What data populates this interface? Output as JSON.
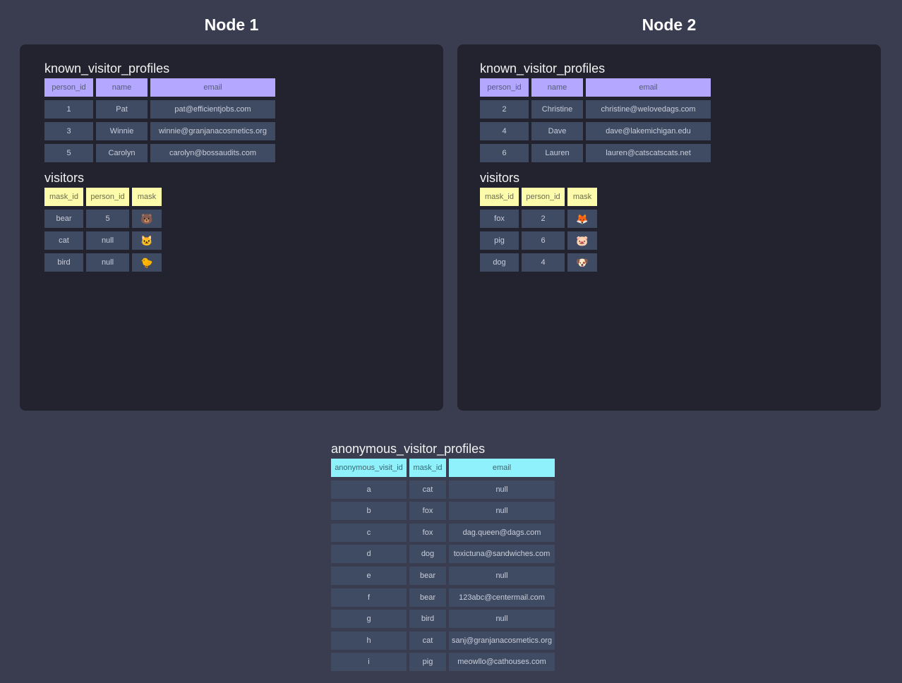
{
  "nodes": [
    {
      "title": "Node 1",
      "known_visitor_profiles": {
        "title": "known_visitor_profiles",
        "columns": [
          "person_id",
          "name",
          "email"
        ],
        "rows": [
          [
            "1",
            "Pat",
            "pat@efficientjobs.com"
          ],
          [
            "3",
            "Winnie",
            "winnie@granjanacosmetics.org"
          ],
          [
            "5",
            "Carolyn",
            "carolyn@bossaudits.com"
          ]
        ]
      },
      "visitors": {
        "title": "visitors",
        "columns": [
          "mask_id",
          "person_id",
          "mask"
        ],
        "rows": [
          [
            "bear",
            "5",
            "🐻"
          ],
          [
            "cat",
            "null",
            "🐱"
          ],
          [
            "bird",
            "null",
            "🐤"
          ]
        ]
      }
    },
    {
      "title": "Node 2",
      "known_visitor_profiles": {
        "title": "known_visitor_profiles",
        "columns": [
          "person_id",
          "name",
          "email"
        ],
        "rows": [
          [
            "2",
            "Christine",
            "christine@welovedags.com"
          ],
          [
            "4",
            "Dave",
            "dave@lakemichigan.edu"
          ],
          [
            "6",
            "Lauren",
            "lauren@catscatscats.net"
          ]
        ]
      },
      "visitors": {
        "title": "visitors",
        "columns": [
          "mask_id",
          "person_id",
          "mask"
        ],
        "rows": [
          [
            "fox",
            "2",
            "🦊"
          ],
          [
            "pig",
            "6",
            "🐷"
          ],
          [
            "dog",
            "4",
            "🐶"
          ]
        ]
      }
    }
  ],
  "anonymous_visitor_profiles": {
    "title": "anonymous_visitor_profiles",
    "columns": [
      "anonymous_visit_id",
      "mask_id",
      "email"
    ],
    "rows": [
      [
        "a",
        "cat",
        "null"
      ],
      [
        "b",
        "fox",
        "null"
      ],
      [
        "c",
        "fox",
        "dag.queen@dags.com"
      ],
      [
        "d",
        "dog",
        "toxictuna@sandwiches.com"
      ],
      [
        "e",
        "bear",
        "null"
      ],
      [
        "f",
        "bear",
        "123abc@centermail.com"
      ],
      [
        "g",
        "bird",
        "null"
      ],
      [
        "h",
        "cat",
        "sanj@granjanacosmetics.org"
      ],
      [
        "i",
        "pig",
        "meowllo@cathouses.com"
      ]
    ]
  },
  "colors": {
    "background": "#3a3d50",
    "panel": "#23232f",
    "cell": "#3f4a63",
    "known_header": "#b4a7ff",
    "visitors_header": "#fdfcab",
    "anonymous_header": "#8ef1fb"
  }
}
